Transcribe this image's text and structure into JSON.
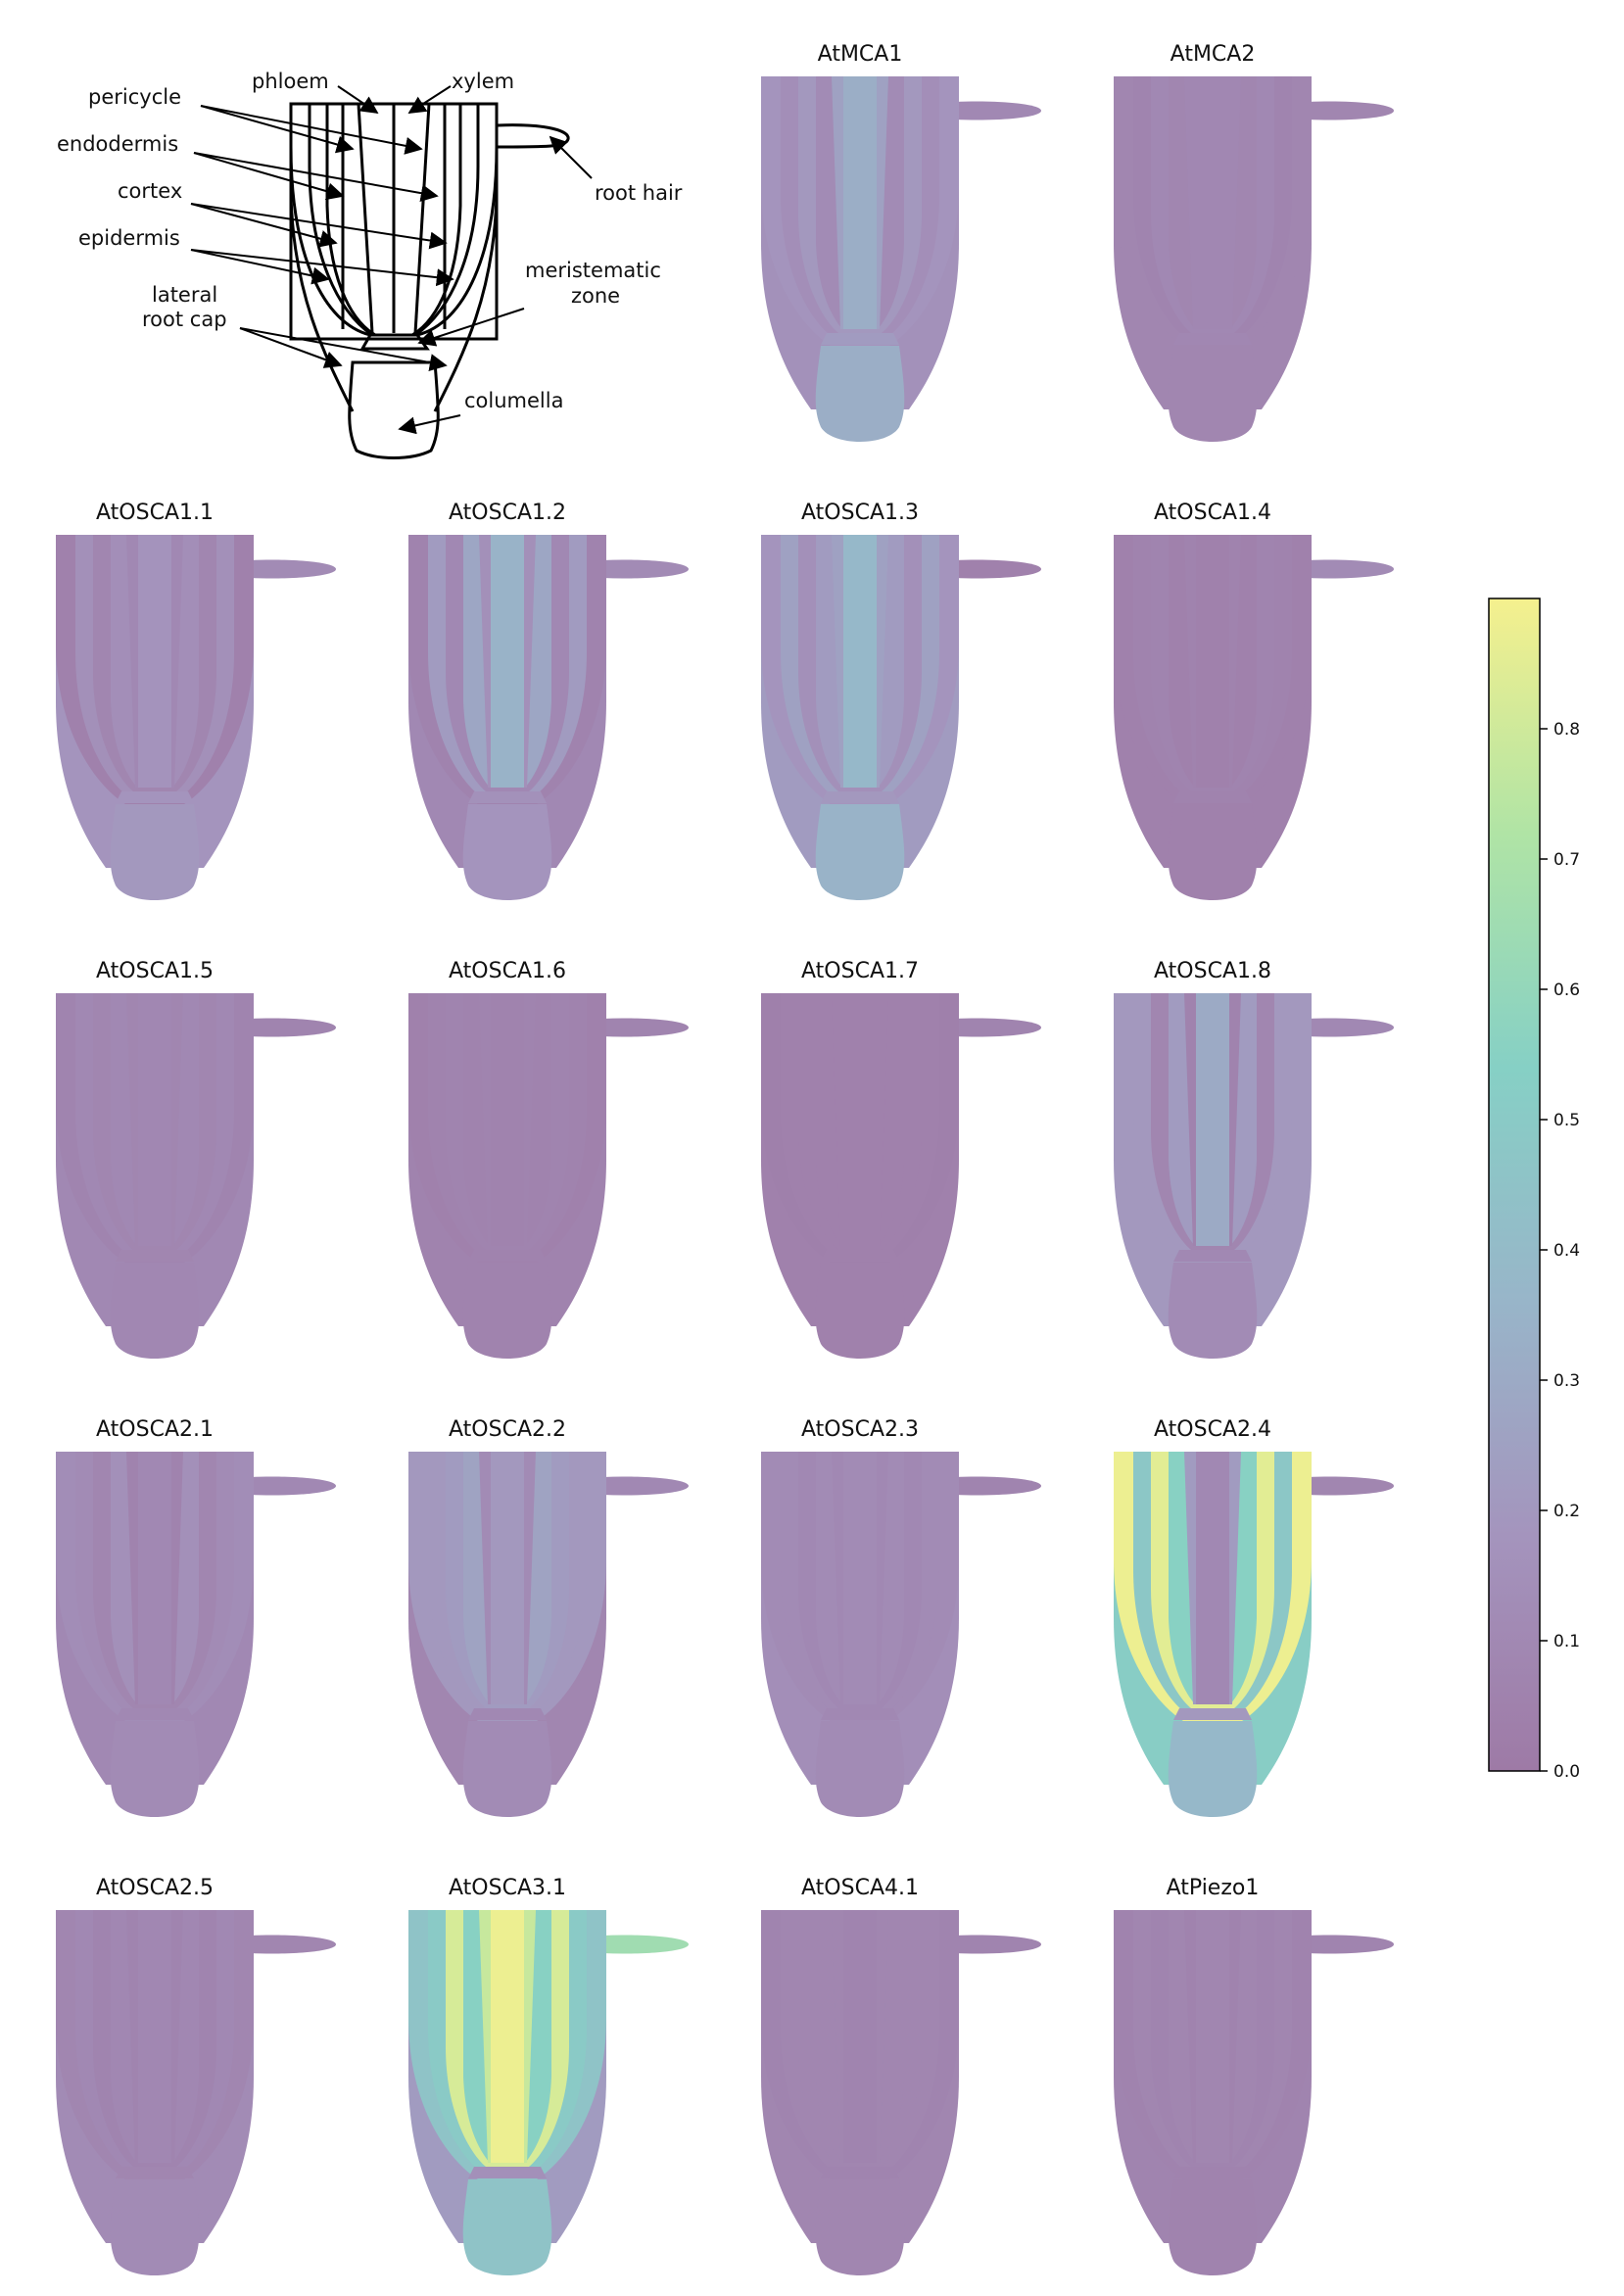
{
  "schematic": {
    "labels": {
      "phloem": "phloem",
      "xylem": "xylem",
      "pericycle": "pericycle",
      "endodermis": "endodermis",
      "cortex": "cortex",
      "epidermis": "epidermis",
      "lateral_root_cap_1": "lateral",
      "lateral_root_cap_2": "root cap",
      "meristematic_1": "meristematic",
      "meristematic_2": "zone",
      "columella": "columella",
      "root_hair": "root hair"
    }
  },
  "colorbar": {
    "min": 0.0,
    "max": 0.9,
    "ticks": [
      "0.0",
      "0.1",
      "0.2",
      "0.3",
      "0.4",
      "0.5",
      "0.6",
      "0.7",
      "0.8"
    ],
    "stops": [
      "#9e7aa6",
      "#a494bd",
      "#98b5c9",
      "#86d0c5",
      "#b0e4a5",
      "#f5f08e"
    ]
  },
  "panels": [
    {
      "title": "AtMCA1",
      "values": {
        "epidermis": 0.18,
        "cortex": 0.14,
        "endodermis": 0.2,
        "pericycle": 0.12,
        "phloem": 0.25,
        "xylem": 0.32,
        "lrc": 0.16,
        "mer": 0.22,
        "col": 0.32,
        "hair": 0.1
      }
    },
    {
      "title": "AtMCA2",
      "values": {
        "epidermis": 0.08,
        "cortex": 0.07,
        "endodermis": 0.1,
        "pericycle": 0.08,
        "phloem": 0.09,
        "xylem": 0.09,
        "lrc": 0.08,
        "mer": 0.09,
        "col": 0.08,
        "hair": 0.08
      }
    },
    {
      "title": "AtOSCA1.1",
      "values": {
        "epidermis": 0.05,
        "cortex": 0.15,
        "endodermis": 0.08,
        "pericycle": 0.14,
        "phloem": 0.1,
        "xylem": 0.17,
        "lrc": 0.18,
        "mer": 0.18,
        "col": 0.2,
        "hair": 0.12
      }
    },
    {
      "title": "AtOSCA1.2",
      "values": {
        "epidermis": 0.06,
        "cortex": 0.22,
        "endodermis": 0.1,
        "pericycle": 0.28,
        "phloem": 0.15,
        "xylem": 0.35,
        "lrc": 0.1,
        "mer": 0.16,
        "col": 0.18,
        "hair": 0.12
      }
    },
    {
      "title": "AtOSCA1.3",
      "values": {
        "epidermis": 0.18,
        "cortex": 0.25,
        "endodermis": 0.15,
        "pericycle": 0.22,
        "phloem": 0.25,
        "xylem": 0.38,
        "lrc": 0.22,
        "mer": 0.2,
        "col": 0.35,
        "hair": 0.05
      }
    },
    {
      "title": "AtOSCA1.4",
      "values": {
        "epidermis": 0.05,
        "cortex": 0.06,
        "endodermis": 0.07,
        "pericycle": 0.05,
        "phloem": 0.06,
        "xylem": 0.05,
        "lrc": 0.05,
        "mer": 0.06,
        "col": 0.05,
        "hair": 0.12
      }
    },
    {
      "title": "AtOSCA1.5",
      "values": {
        "epidermis": 0.07,
        "cortex": 0.1,
        "endodermis": 0.08,
        "pericycle": 0.1,
        "phloem": 0.08,
        "xylem": 0.09,
        "lrc": 0.1,
        "mer": 0.08,
        "col": 0.09,
        "hair": 0.07
      }
    },
    {
      "title": "AtOSCA1.6",
      "values": {
        "epidermis": 0.05,
        "cortex": 0.06,
        "endodermis": 0.07,
        "pericycle": 0.06,
        "phloem": 0.07,
        "xylem": 0.06,
        "lrc": 0.06,
        "mer": 0.06,
        "col": 0.06,
        "hair": 0.07
      }
    },
    {
      "title": "AtOSCA1.7",
      "values": {
        "epidermis": 0.04,
        "cortex": 0.05,
        "endodermis": 0.05,
        "pericycle": 0.05,
        "phloem": 0.05,
        "xylem": 0.05,
        "lrc": 0.05,
        "mer": 0.05,
        "col": 0.05,
        "hair": 0.07
      }
    },
    {
      "title": "AtOSCA1.8",
      "values": {
        "epidermis": 0.2,
        "cortex": 0.2,
        "endodermis": 0.08,
        "pericycle": 0.22,
        "phloem": 0.06,
        "xylem": 0.3,
        "lrc": 0.2,
        "mer": 0.1,
        "col": 0.12,
        "hair": 0.1
      }
    },
    {
      "title": "AtOSCA2.1",
      "values": {
        "epidermis": 0.13,
        "cortex": 0.12,
        "endodermis": 0.08,
        "pericycle": 0.15,
        "phloem": 0.06,
        "xylem": 0.1,
        "lrc": 0.1,
        "mer": 0.1,
        "col": 0.12,
        "hair": 0.1
      }
    },
    {
      "title": "AtOSCA2.2",
      "values": {
        "epidermis": 0.2,
        "cortex": 0.2,
        "endodermis": 0.22,
        "pericycle": 0.26,
        "phloem": 0.12,
        "xylem": 0.2,
        "lrc": 0.08,
        "mer": 0.1,
        "col": 0.12,
        "hair": 0.1
      }
    },
    {
      "title": "AtOSCA2.3",
      "values": {
        "epidermis": 0.12,
        "cortex": 0.12,
        "endodermis": 0.1,
        "pericycle": 0.12,
        "phloem": 0.1,
        "xylem": 0.12,
        "lrc": 0.14,
        "mer": 0.1,
        "col": 0.12,
        "hair": 0.07
      }
    },
    {
      "title": "AtOSCA2.4",
      "values": {
        "epidermis": 0.88,
        "cortex": 0.48,
        "endodermis": 0.85,
        "pericycle": 0.55,
        "phloem": 0.22,
        "xylem": 0.1,
        "lrc": 0.52,
        "mer": 0.2,
        "col": 0.38,
        "hair": 0.08
      }
    },
    {
      "title": "AtOSCA2.5",
      "values": {
        "epidermis": 0.08,
        "cortex": 0.1,
        "endodermis": 0.07,
        "pericycle": 0.09,
        "phloem": 0.07,
        "xylem": 0.09,
        "lrc": 0.12,
        "mer": 0.08,
        "col": 0.12,
        "hair": 0.08
      }
    },
    {
      "title": "AtOSCA3.1",
      "values": {
        "epidermis": 0.45,
        "cortex": 0.5,
        "endodermis": 0.82,
        "pericycle": 0.55,
        "phloem": 0.78,
        "xylem": 0.88,
        "lrc": 0.22,
        "mer": 0.15,
        "col": 0.45,
        "hair": 0.65
      }
    },
    {
      "title": "AtOSCA4.1",
      "values": {
        "epidermis": 0.07,
        "cortex": 0.08,
        "endodermis": 0.08,
        "pericycle": 0.08,
        "phloem": 0.08,
        "xylem": 0.07,
        "lrc": 0.08,
        "mer": 0.07,
        "col": 0.08,
        "hair": 0.07
      }
    },
    {
      "title": "AtPiezo1",
      "values": {
        "epidermis": 0.06,
        "cortex": 0.08,
        "endodermis": 0.07,
        "pericycle": 0.08,
        "phloem": 0.06,
        "xylem": 0.08,
        "lrc": 0.07,
        "mer": 0.06,
        "col": 0.06,
        "hair": 0.07
      }
    }
  ]
}
